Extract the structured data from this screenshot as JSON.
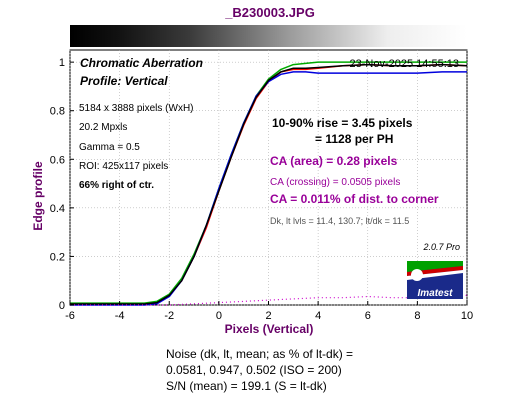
{
  "file_title": "_B230003.JPG",
  "header": {
    "title": "Chromatic Aberration",
    "profile": "Profile: Vertical",
    "timestamp": "23-Nov-2025 14:55:13"
  },
  "info": {
    "dimensions": "5184 x 3888 pixels (WxH)",
    "megapixels": "20.2 Mpxls",
    "gamma": "Gamma = 0.5",
    "roi": "ROI: 425x117 pixels",
    "position": "66% right of ctr."
  },
  "results": {
    "rise": "10-90% rise = 3.45 pixels",
    "per_ph": "= 1128 per PH",
    "ca_area": "CA (area) = 0.28 pixels",
    "ca_crossing": "CA (crossing) = 0.0505 pixels",
    "ca_corner": "CA = 0.011% of dist. to corner",
    "levels": "Dk, lt lvls = 11.4, 130.7;  lt/dk = 11.5"
  },
  "version": "2.0.7  Pro",
  "logo_text": "Imatest",
  "footer": {
    "line1": "Noise (dk, lt, mean; as % of lt-dk) =",
    "line2": "0.0581,  0.947,  0.502  (ISO =  200)",
    "line3": "S/N (mean) = 199.1  (S = lt-dk)"
  },
  "colors": {
    "red": "#ff0000",
    "green": "#00aa00",
    "blue": "#0000dd",
    "black": "#000000",
    "magenta": "#cc00cc",
    "purple": "#990099",
    "title_purple": "#660066"
  },
  "chart_data": {
    "type": "line",
    "xlabel": "Pixels (Vertical)",
    "ylabel": "Edge profile",
    "xlim": [
      -6,
      10
    ],
    "ylim": [
      0,
      1.05
    ],
    "x_ticks": [
      -6,
      -4,
      -2,
      0,
      2,
      4,
      6,
      8,
      10
    ],
    "y_ticks": [
      0,
      0.2,
      0.4,
      0.6,
      0.8,
      1
    ],
    "x_tick_labels": [
      "-6",
      "-4",
      "-2",
      "0",
      "2",
      "4",
      "6",
      "8",
      "10"
    ],
    "y_tick_labels": [
      "0",
      "0.2",
      "0.4",
      "0.6",
      "0.8",
      "1"
    ],
    "grid": true,
    "series": [
      {
        "color_key": "red",
        "points": [
          [
            -6,
            0.003
          ],
          [
            -4,
            0.003
          ],
          [
            -3,
            0.003
          ],
          [
            -2.5,
            0.01
          ],
          [
            -2,
            0.04
          ],
          [
            -1.5,
            0.1
          ],
          [
            -1,
            0.2
          ],
          [
            -0.5,
            0.32
          ],
          [
            0,
            0.47
          ],
          [
            0.5,
            0.61
          ],
          [
            1,
            0.74
          ],
          [
            1.5,
            0.85
          ],
          [
            2,
            0.92
          ],
          [
            2.5,
            0.96
          ],
          [
            3,
            0.97
          ],
          [
            3.5,
            0.97
          ],
          [
            4,
            0.975
          ],
          [
            5,
            0.985
          ],
          [
            6,
            0.99
          ],
          [
            7,
            0.985
          ],
          [
            8,
            0.985
          ],
          [
            9,
            0.99
          ],
          [
            10,
            0.985
          ]
        ]
      },
      {
        "color_key": "green",
        "points": [
          [
            -6,
            0.008
          ],
          [
            -4,
            0.008
          ],
          [
            -3,
            0.008
          ],
          [
            -2.5,
            0.015
          ],
          [
            -2,
            0.045
          ],
          [
            -1.5,
            0.11
          ],
          [
            -1,
            0.21
          ],
          [
            -0.5,
            0.33
          ],
          [
            0,
            0.48
          ],
          [
            0.5,
            0.62
          ],
          [
            1,
            0.75
          ],
          [
            1.5,
            0.86
          ],
          [
            2,
            0.93
          ],
          [
            2.5,
            0.97
          ],
          [
            3,
            0.99
          ],
          [
            3.5,
            0.995
          ],
          [
            4,
            1.0
          ],
          [
            5,
            1.0
          ],
          [
            6,
            1.0
          ],
          [
            7,
            1.0
          ],
          [
            8,
            1.0
          ],
          [
            9,
            1.0
          ],
          [
            10,
            1.0
          ]
        ]
      },
      {
        "color_key": "blue",
        "points": [
          [
            -6,
            0.0
          ],
          [
            -4,
            0.0
          ],
          [
            -3,
            0.0
          ],
          [
            -2.5,
            0.005
          ],
          [
            -2,
            0.035
          ],
          [
            -1.5,
            0.1
          ],
          [
            -1,
            0.2
          ],
          [
            -0.5,
            0.33
          ],
          [
            0,
            0.48
          ],
          [
            0.5,
            0.62
          ],
          [
            1,
            0.75
          ],
          [
            1.5,
            0.86
          ],
          [
            2,
            0.92
          ],
          [
            2.5,
            0.95
          ],
          [
            3,
            0.96
          ],
          [
            3.5,
            0.96
          ],
          [
            4,
            0.955
          ],
          [
            5,
            0.955
          ],
          [
            6,
            0.955
          ],
          [
            7,
            0.955
          ],
          [
            8,
            0.955
          ],
          [
            9,
            0.96
          ],
          [
            10,
            0.96
          ]
        ]
      },
      {
        "color_key": "black",
        "points": [
          [
            -6,
            0.004
          ],
          [
            -4,
            0.004
          ],
          [
            -3,
            0.004
          ],
          [
            -2.5,
            0.01
          ],
          [
            -2,
            0.04
          ],
          [
            -1.5,
            0.1
          ],
          [
            -1,
            0.2
          ],
          [
            -0.5,
            0.33
          ],
          [
            0,
            0.47
          ],
          [
            0.5,
            0.61
          ],
          [
            1,
            0.745
          ],
          [
            1.5,
            0.855
          ],
          [
            2,
            0.925
          ],
          [
            2.5,
            0.96
          ],
          [
            3,
            0.975
          ],
          [
            3.5,
            0.975
          ],
          [
            4,
            0.978
          ],
          [
            5,
            0.985
          ],
          [
            6,
            0.99
          ],
          [
            7,
            0.985
          ],
          [
            8,
            0.985
          ],
          [
            9,
            0.99
          ],
          [
            10,
            0.985
          ]
        ]
      },
      {
        "color_key": "magenta",
        "dotted": true,
        "points": [
          [
            -6,
            0.0
          ],
          [
            -2,
            0.0
          ],
          [
            -1,
            0.005
          ],
          [
            0,
            0.01
          ],
          [
            1,
            0.015
          ],
          [
            2,
            0.02
          ],
          [
            3,
            0.025
          ],
          [
            4,
            0.03
          ],
          [
            5,
            0.03
          ],
          [
            6,
            0.035
          ],
          [
            7,
            0.03
          ],
          [
            8,
            0.03
          ],
          [
            9,
            0.035
          ],
          [
            10,
            0.04
          ]
        ]
      }
    ]
  }
}
